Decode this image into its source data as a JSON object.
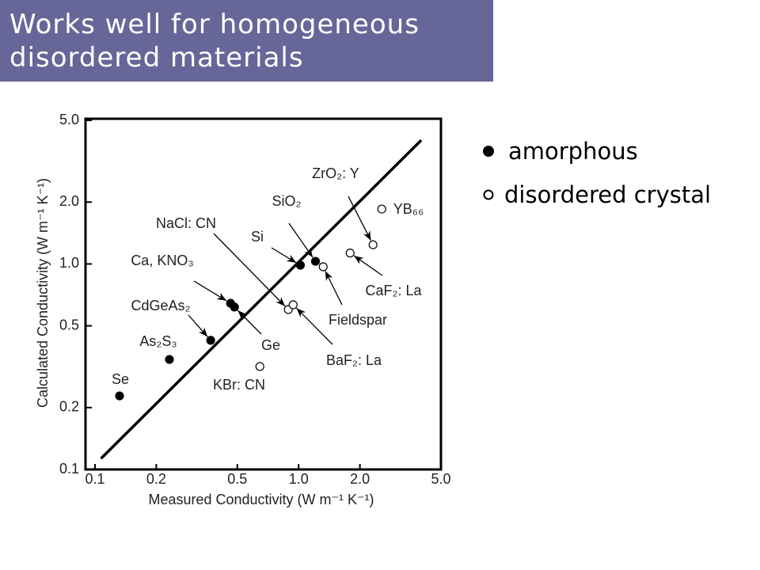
{
  "chart_data": {
    "type": "scatter",
    "title": "Works well for homogeneous disordered materials",
    "x_label": "Measured Conductivity  (W m⁻¹ K⁻¹)",
    "y_label": "Calculated Conductivity  (W m⁻¹ K⁻¹)",
    "log_scale": true,
    "xlim": [
      0.1,
      5
    ],
    "ylim": [
      0.1,
      5
    ],
    "xticks": [
      0.1,
      0.2,
      0.5,
      {
        "value": 1,
        "label": "1.0"
      },
      {
        "value": 2,
        "label": "2.0"
      },
      {
        "value": 5,
        "label": "5.0"
      }
    ],
    "yticks": [
      0.1,
      0.2,
      0.5,
      {
        "value": 1,
        "label": "1.0"
      },
      {
        "value": 2,
        "label": "2.0"
      },
      {
        "value": 5,
        "label": "5.0"
      }
    ],
    "fit_line": {
      "x": [
        0.107,
        4.0
      ],
      "y": [
        0.113,
        4.0
      ]
    },
    "series": [
      {
        "name": "amorphous",
        "color": "#000000",
        "marker": "filled",
        "labels": [
          "Se",
          "As₂S₃",
          "CdGeAs₂",
          "Ca, KNO₃",
          "Ge",
          "Si",
          "SiO₂"
        ],
        "x": [
          0.132,
          0.232,
          0.37,
          0.463,
          0.484,
          1.02,
          1.21
        ],
        "values": [
          0.228,
          0.343,
          0.425,
          0.644,
          0.617,
          0.986,
          1.03
        ]
      },
      {
        "name": "disordered crystal",
        "color": "#000000",
        "marker": "open",
        "labels": [
          "KBr: CN",
          "NaCl: CN",
          "BaF₂: La",
          "Fieldspar",
          "CaF₂: La",
          "ZrO₂: Y",
          "YB₆₆"
        ],
        "x": [
          0.645,
          0.89,
          0.94,
          1.32,
          1.79,
          2.32,
          2.56
        ],
        "values": [
          0.317,
          0.6,
          0.633,
          0.969,
          1.13,
          1.24,
          1.85
        ]
      }
    ]
  }
}
